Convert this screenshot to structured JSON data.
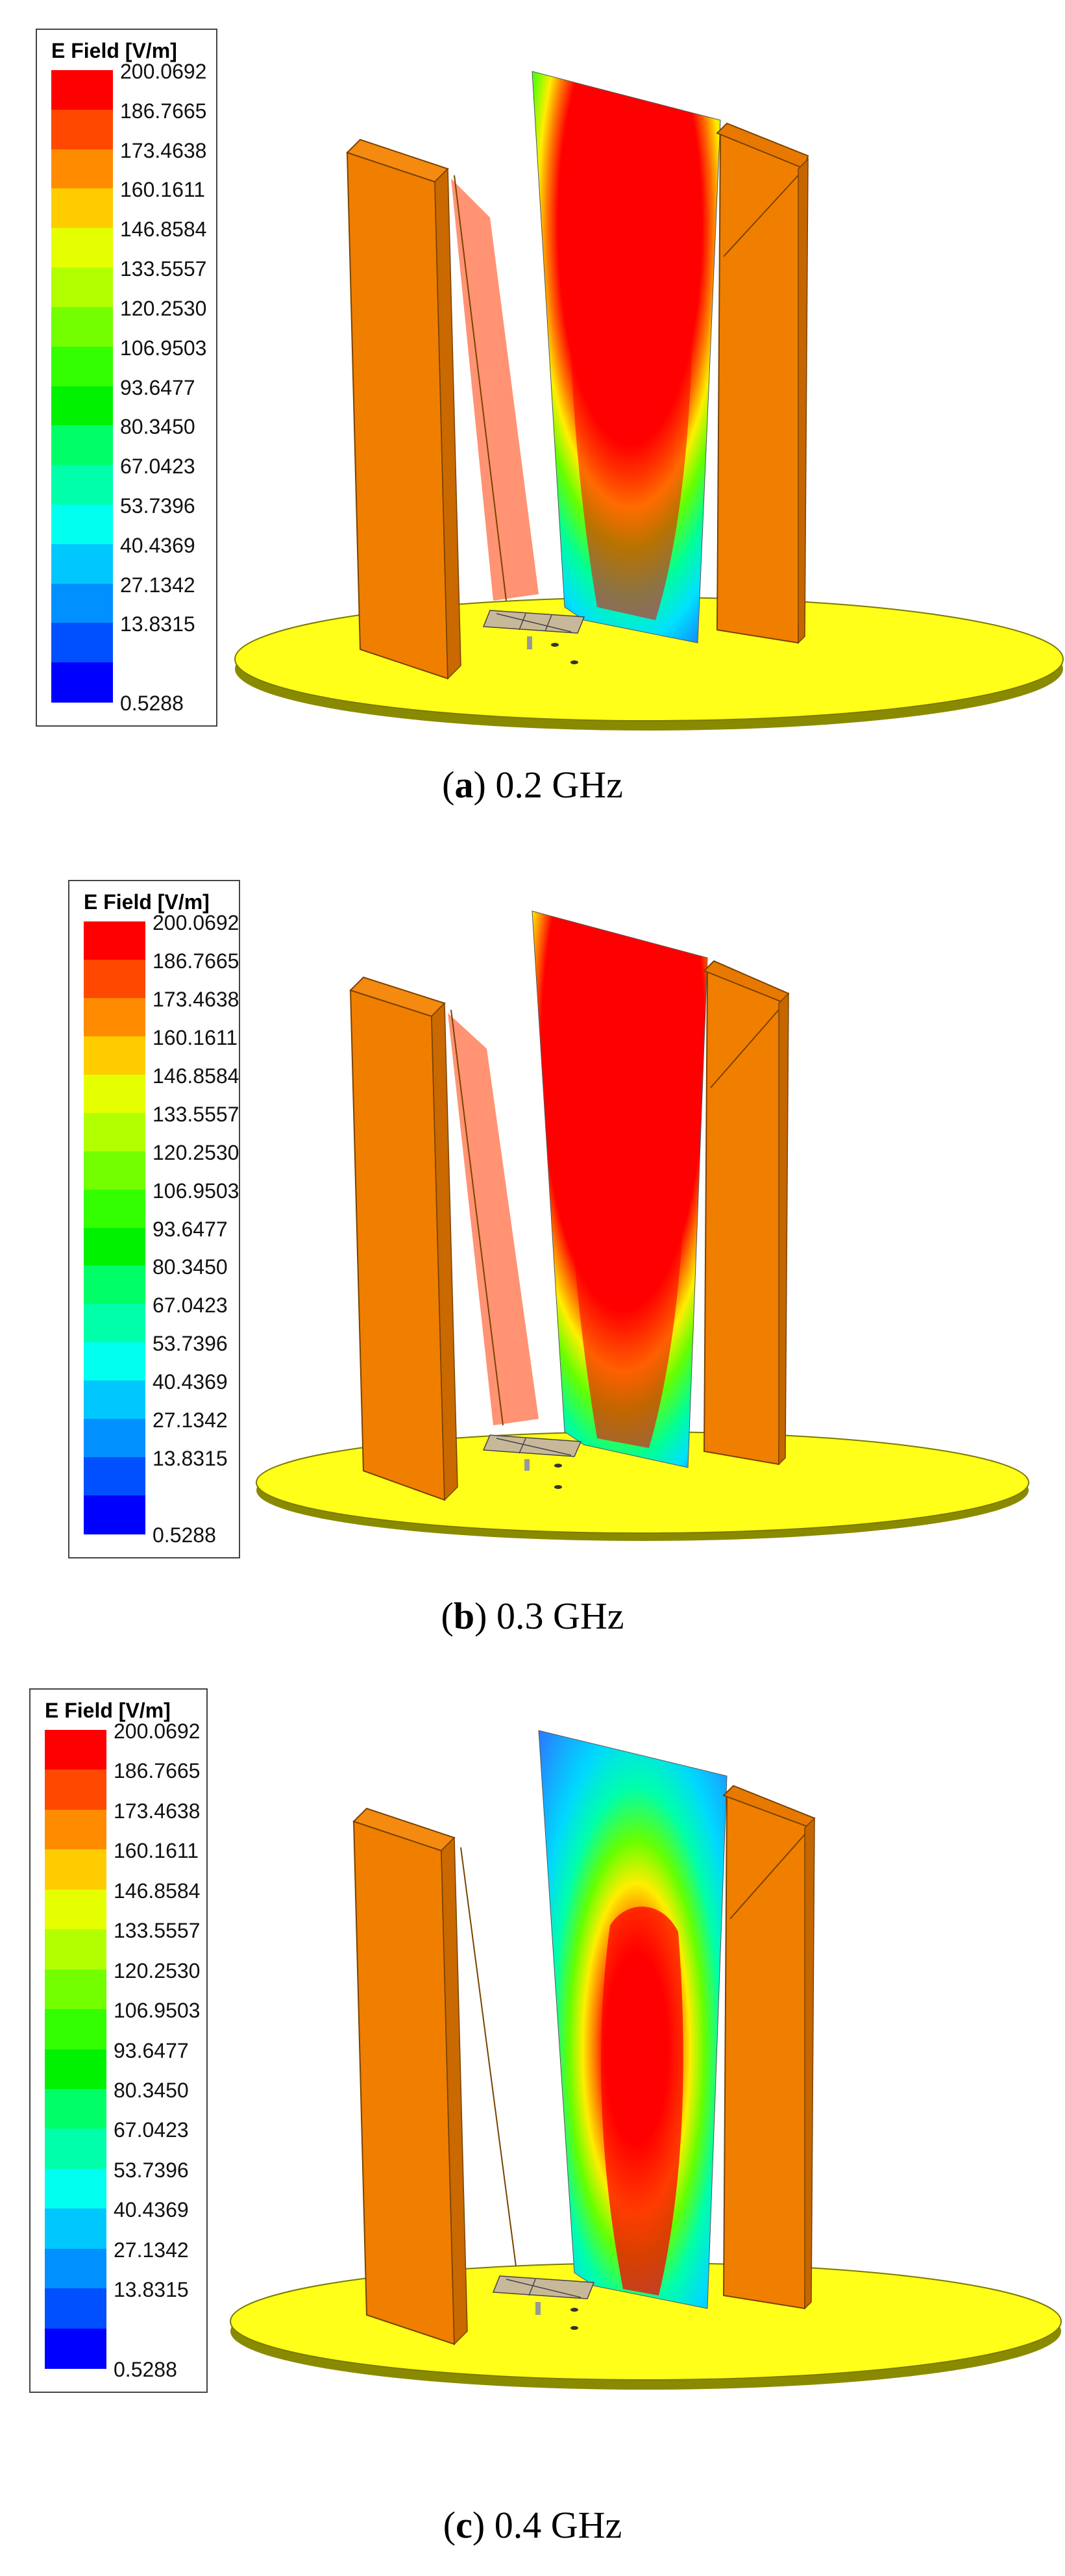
{
  "figure": {
    "panels": [
      {
        "id": "a",
        "caption_letter": "a",
        "caption_freq": "0.2 GHz",
        "legend": {
          "title": "E Field [V/m]",
          "ticks": [
            "200.0692",
            "186.7665",
            "173.4638",
            "160.1611",
            "146.8584",
            "133.5557",
            "120.2530",
            "106.9503",
            "93.6477",
            "80.3450",
            "67.0423",
            "53.7396",
            "40.4369",
            "27.1342",
            "13.8315",
            "0.5288"
          ]
        }
      },
      {
        "id": "b",
        "caption_letter": "b",
        "caption_freq": "0.3 GHz",
        "legend": {
          "title": "E Field [V/m]",
          "ticks": [
            "200.0692",
            "186.7665",
            "173.4638",
            "160.1611",
            "146.8584",
            "133.5557",
            "120.2530",
            "106.9503",
            "93.6477",
            "80.3450",
            "67.0423",
            "53.7396",
            "40.4369",
            "27.1342",
            "13.8315",
            "0.5288"
          ]
        }
      },
      {
        "id": "c",
        "caption_letter": "c",
        "caption_freq": "0.4 GHz",
        "legend": {
          "title": "E Field [V/m]",
          "ticks": [
            "200.0692",
            "186.7665",
            "173.4638",
            "160.1611",
            "146.8584",
            "133.5557",
            "120.2530",
            "106.9503",
            "93.6477",
            "80.3450",
            "67.0423",
            "53.7396",
            "40.4369",
            "27.1342",
            "13.8315",
            "0.5288"
          ]
        }
      }
    ],
    "colorscale": [
      "#ff0000",
      "#ff4800",
      "#ff8c00",
      "#ffcc00",
      "#e6ff00",
      "#b2ff00",
      "#73ff00",
      "#33ff00",
      "#00f200",
      "#00ff66",
      "#00ffaa",
      "#00ffee",
      "#00c8ff",
      "#0090ff",
      "#0050ff",
      "#0000ff"
    ],
    "colors": {
      "plate": "#f07f00",
      "plate_edge": "#7a4200",
      "ground": "#ffff1a",
      "ground_edge": "#7a7a00"
    }
  }
}
